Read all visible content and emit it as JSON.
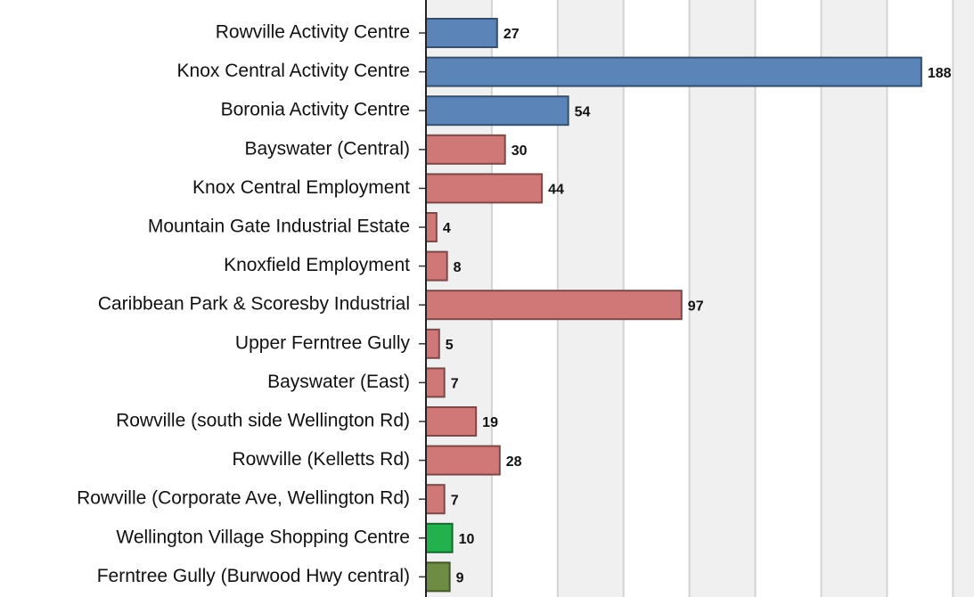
{
  "chart_data": {
    "type": "bar",
    "orientation": "horizontal",
    "categories": [
      "Rowville Activity Centre",
      "Knox Central Activity Centre",
      "Boronia Activity Centre",
      "Bayswater (Central)",
      "Knox Central Employment",
      "Mountain Gate Industrial Estate",
      "Knoxfield Employment",
      "Caribbean Park & Scoresby Industrial",
      "Upper Ferntree Gully",
      "Bayswater (East)",
      "Rowville (south side Wellington Rd)",
      "Rowville (Kelletts Rd)",
      "Rowville (Corporate Ave, Wellington Rd)",
      "Wellington Village Shopping Centre",
      "Ferntree Gully (Burwood Hwy central)"
    ],
    "values": [
      27,
      188,
      54,
      30,
      44,
      4,
      8,
      97,
      5,
      7,
      19,
      28,
      7,
      10,
      9
    ],
    "colors": [
      "#5b84b8",
      "#5b84b8",
      "#5b84b8",
      "#d07878",
      "#d07878",
      "#d07878",
      "#d07878",
      "#d07878",
      "#d07878",
      "#d07878",
      "#d07878",
      "#d07878",
      "#d07878",
      "#22b14c",
      "#6f8c45"
    ],
    "xlim": [
      0,
      208
    ],
    "xticks": [
      0,
      25,
      50,
      75,
      100,
      125,
      150,
      175,
      200
    ],
    "grid": true
  }
}
